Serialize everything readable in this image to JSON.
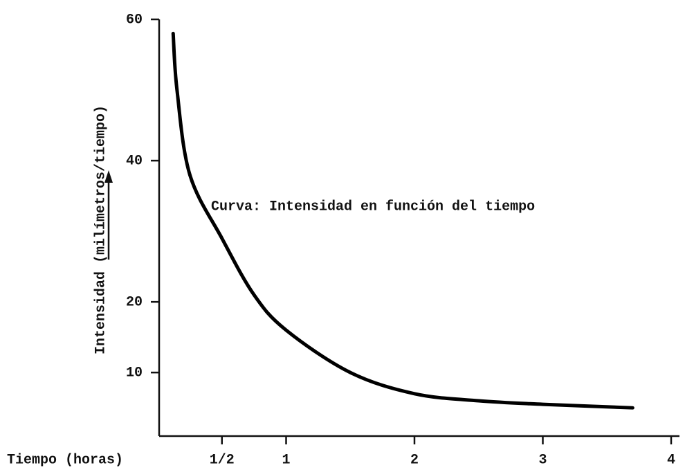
{
  "chart_data": {
    "type": "line",
    "ylabel": "Intensidad (milímetros/tiempo)",
    "xlabel": "Tiempo (horas)",
    "annotation": "Curva:  Intensidad en función del tiempo",
    "x": [
      0.12,
      0.15,
      0.25,
      0.5,
      0.75,
      1,
      1.5,
      2,
      2.5,
      3,
      3.7
    ],
    "series": [
      {
        "color": "#000000",
        "values": [
          58,
          50,
          38,
          29,
          21,
          16,
          10,
          7,
          6,
          5.5,
          5
        ]
      }
    ],
    "xlim": [
      0,
      4
    ],
    "xticks": [
      {
        "value": 0.5,
        "label": "1/2"
      },
      1,
      2,
      3,
      4
    ],
    "ylim": [
      1,
      60
    ],
    "yticks": [
      10,
      20,
      40,
      60
    ],
    "grid": false
  }
}
